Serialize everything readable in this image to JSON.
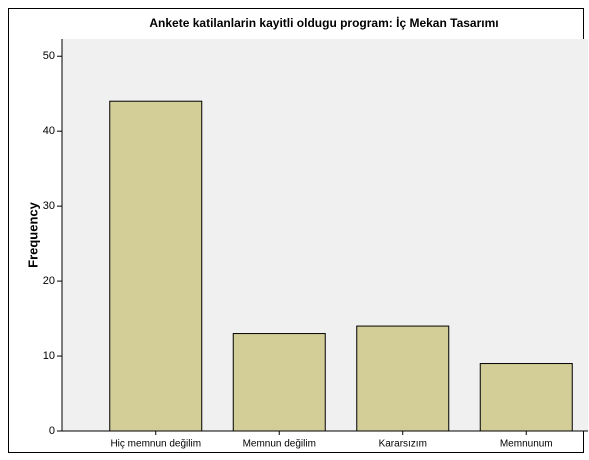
{
  "chart_data": {
    "type": "bar",
    "title": "Ankete katilanlarin kayitli oldugu program: İç Mekan Tasarımı",
    "y_label": "Frequency",
    "categories": [
      "Hiç memnun değilim",
      "Memnun değilim",
      "Kararsızım",
      "Memnunum"
    ],
    "values": [
      44,
      13,
      14,
      9
    ],
    "color": "#d3ce98",
    "ylim": [
      0,
      52.3
    ],
    "yticks": [
      0,
      10,
      20,
      30,
      40,
      50
    ],
    "grid": false
  }
}
